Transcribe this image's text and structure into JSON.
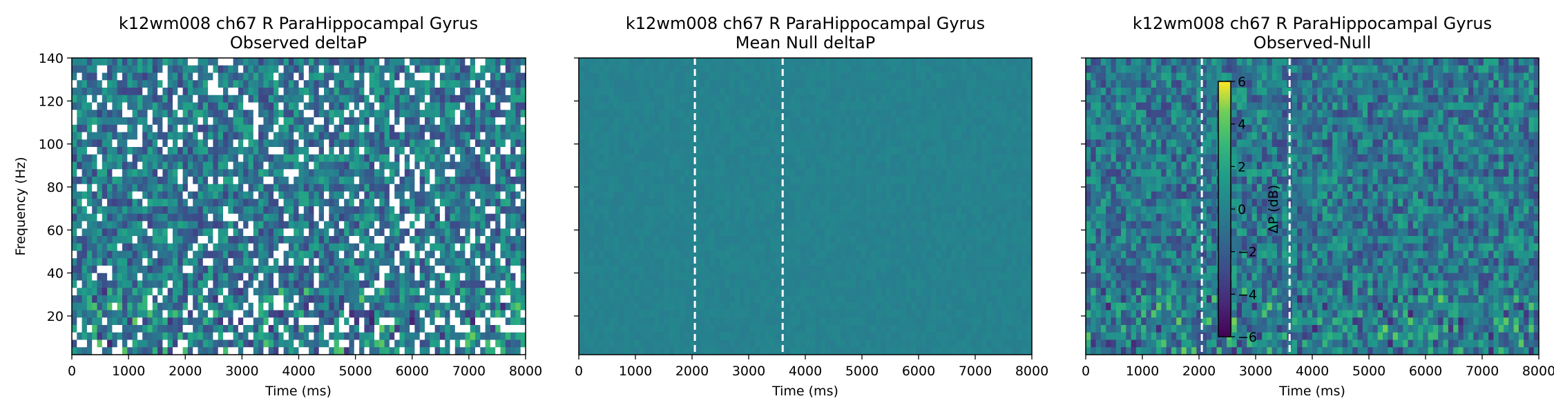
{
  "chart_data": [
    {
      "type": "heatmap",
      "title_line1": "k12wm008 ch67 R ParaHippocampal Gyrus",
      "title_line2": "Observed deltaP",
      "xlabel": "Time (ms)",
      "ylabel": "Frequency (Hz)",
      "xlim": [
        0,
        8000
      ],
      "ylim": [
        2,
        140
      ],
      "xticks": [
        "0",
        "1000",
        "2000",
        "3000",
        "4000",
        "5000",
        "6000",
        "7000",
        "8000"
      ],
      "yticks": [
        "20",
        "40",
        "60",
        "80",
        "100",
        "120",
        "140"
      ],
      "vlines": [],
      "colorbar": null
    },
    {
      "type": "heatmap",
      "title_line1": "k12wm008 ch67 R ParaHippocampal Gyrus",
      "title_line2": "Mean Null deltaP",
      "xlabel": "Time (ms)",
      "ylabel": "",
      "xlim": [
        0,
        8000
      ],
      "ylim": [
        2,
        140
      ],
      "xticks": [
        "0",
        "1000",
        "2000",
        "3000",
        "4000",
        "5000",
        "6000",
        "7000",
        "8000"
      ],
      "yticks": [],
      "vlines": [
        2050,
        3600
      ],
      "colorbar": null
    },
    {
      "type": "heatmap",
      "title_line1": "k12wm008 ch67 R ParaHippocampal Gyrus",
      "title_line2": "Observed-Null",
      "xlabel": "Time (ms)",
      "ylabel": "",
      "xlim": [
        0,
        8000
      ],
      "ylim": [
        2,
        140
      ],
      "xticks": [
        "0",
        "1000",
        "2000",
        "3000",
        "4000",
        "5000",
        "6000",
        "7000",
        "8000"
      ],
      "yticks": [],
      "vlines": [
        2050,
        3600
      ],
      "colorbar": {
        "label": "ΔP (dB)",
        "range": [
          -6,
          6
        ],
        "ticks": [
          "6",
          "4",
          "2",
          "0",
          "−2",
          "−4",
          "−6"
        ],
        "colormap": "viridis"
      }
    }
  ]
}
